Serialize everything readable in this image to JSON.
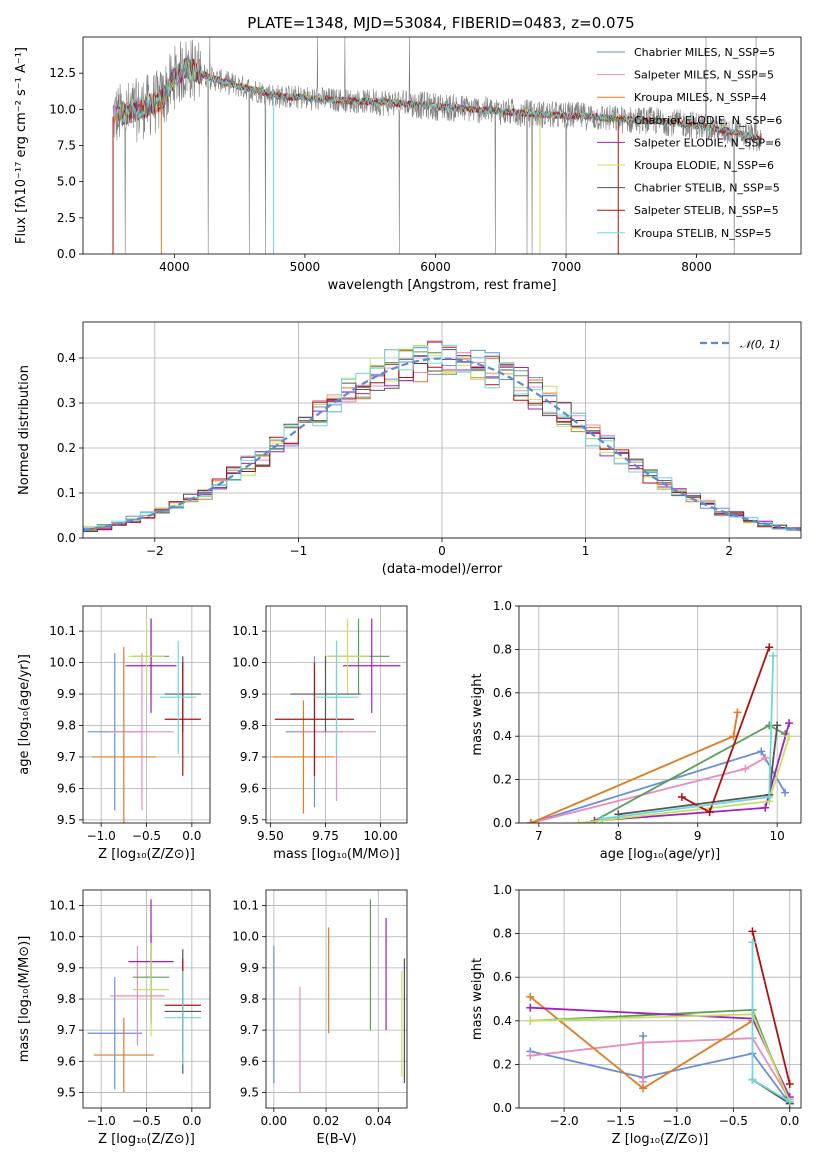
{
  "figure_title": "PLATE=1348, MJD=53084, FIBERID=0483, z=0.075",
  "colors": {
    "chabrier_miles": "#6a8fd6",
    "salpeter_miles": "#e98cc0",
    "kroupa_miles": "#e07b22",
    "chabrier_elodie": "#5a9e5a",
    "salpeter_elodie": "#a020c0",
    "kroupa_elodie": "#c8e060",
    "chabrier_stelib": "#555555",
    "salpeter_stelib": "#b01010",
    "kroupa_stelib": "#70d8d8",
    "gaussian": "#5b8bd8"
  },
  "chart_data": [
    {
      "id": "spectrum",
      "type": "line",
      "xlabel": "wavelength [Angstrom, rest frame]",
      "ylabel": "Flux [fλ10⁻¹⁷ erg cm⁻² s⁻¹ A⁻¹]",
      "xlim": [
        3300,
        8800
      ],
      "ylim": [
        0,
        15
      ],
      "xticks": [
        "4000",
        "5000",
        "6000",
        "7000",
        "8000"
      ],
      "yticks": [
        "0.0",
        "2.5",
        "5.0",
        "7.5",
        "10.0",
        "12.5"
      ],
      "legend_position": "top-right",
      "legend": [
        "Chabrier MILES, N_SSP=5",
        "Salpeter MILES, N_SSP=5",
        "Kroupa MILES, N_SSP=4",
        "Chabrier ELODIE, N_SSP=6",
        "Salpeter ELODIE, N_SSP=6",
        "Kroupa ELODIE, N_SSP=6",
        "Chabrier STELIB, N_SSP=5",
        "Salpeter STELIB, N_SSP=5",
        "Kroupa STELIB, N_SSP=5"
      ],
      "continuum": {
        "x": [
          3530,
          3700,
          3900,
          4000,
          4100,
          4300,
          4500,
          4800,
          5000,
          5300,
          5600,
          6000,
          6300,
          6600,
          6900,
          7200,
          7400,
          7700,
          8000,
          8300,
          8500
        ],
        "y": [
          9.5,
          9.9,
          10.6,
          12.2,
          12.9,
          12.1,
          11.6,
          10.9,
          10.8,
          10.6,
          10.5,
          10.2,
          10.0,
          9.8,
          9.6,
          9.5,
          9.3,
          9.2,
          8.9,
          8.4,
          7.9
        ]
      }
    },
    {
      "id": "residuals",
      "type": "bar",
      "xlabel": "(data-model)/error",
      "ylabel": "Normed distribution",
      "xlim": [
        -2.5,
        2.5
      ],
      "ylim": [
        0,
        0.48
      ],
      "xticks": [
        "−2",
        "−1",
        "0",
        "1",
        "2"
      ],
      "yticks": [
        "0.0",
        "0.1",
        "0.2",
        "0.3",
        "0.4"
      ],
      "legend_position": "top-right",
      "gaussian_label": "𝒩(0, 1)",
      "bin_width": 0.1,
      "grid": true
    },
    {
      "id": "age_vs_Z",
      "type": "scatter",
      "xlabel": "Z [log₁₀(Z/Z⊙)]",
      "ylabel": "age  [log₁₀(age/yr)]",
      "xlim": [
        -1.2,
        0.2
      ],
      "ylim": [
        9.49,
        10.18
      ],
      "xticks": [
        "−1.0",
        "−0.5",
        "0.0"
      ],
      "yticks": [
        "9.5",
        "9.6",
        "9.7",
        "9.8",
        "9.9",
        "10.0",
        "10.1"
      ],
      "points": [
        {
          "x": -0.85,
          "y": 9.78,
          "xerr": 0.3,
          "yerr": 0.25
        },
        {
          "x": -0.55,
          "y": 9.78,
          "xerr": 0.35,
          "yerr": 0.25
        },
        {
          "x": -0.75,
          "y": 9.7,
          "xerr": 0.35,
          "yerr": 0.35
        },
        {
          "x": -0.45,
          "y": 10.02,
          "xerr": 0.2,
          "yerr": 0.12
        },
        {
          "x": -0.45,
          "y": 9.99,
          "xerr": 0.28,
          "yerr": 0.15
        },
        {
          "x": -0.5,
          "y": 10.02,
          "xerr": 0.2,
          "yerr": 0.12
        },
        {
          "x": -0.1,
          "y": 9.9,
          "xerr": 0.2,
          "yerr": 0.12
        },
        {
          "x": -0.1,
          "y": 9.82,
          "xerr": 0.2,
          "yerr": 0.18
        },
        {
          "x": -0.15,
          "y": 9.89,
          "xerr": 0.2,
          "yerr": 0.18
        }
      ]
    },
    {
      "id": "age_vs_mass",
      "type": "scatter",
      "xlabel": "mass [log₁₀(M/M⊙)]",
      "ylabel": "",
      "xlim": [
        9.48,
        10.12
      ],
      "ylim": [
        9.49,
        10.18
      ],
      "xticks": [
        "9.50",
        "9.75",
        "10.00"
      ],
      "yticks": [
        "9.5",
        "9.6",
        "9.7",
        "9.8",
        "9.9",
        "10.0",
        "10.1"
      ],
      "points": [
        {
          "x": 9.7,
          "y": 9.78,
          "xerr": 0.13,
          "yerr": 0.24
        },
        {
          "x": 9.8,
          "y": 9.78,
          "xerr": 0.18,
          "yerr": 0.22
        },
        {
          "x": 9.65,
          "y": 9.7,
          "xerr": 0.14,
          "yerr": 0.18
        },
        {
          "x": 9.9,
          "y": 10.02,
          "xerr": 0.14,
          "yerr": 0.12
        },
        {
          "x": 9.96,
          "y": 9.99,
          "xerr": 0.13,
          "yerr": 0.15
        },
        {
          "x": 9.85,
          "y": 10.02,
          "xerr": 0.1,
          "yerr": 0.12
        },
        {
          "x": 9.75,
          "y": 9.9,
          "xerr": 0.16,
          "yerr": 0.12
        },
        {
          "x": 9.7,
          "y": 9.82,
          "xerr": 0.18,
          "yerr": 0.18
        },
        {
          "x": 9.8,
          "y": 9.89,
          "xerr": 0.1,
          "yerr": 0.18
        }
      ]
    },
    {
      "id": "weight_vs_age",
      "type": "line",
      "xlabel": "age  [log₁₀(age/yr)]",
      "ylabel": "mass weight",
      "xlim": [
        6.75,
        10.3
      ],
      "ylim": [
        0,
        1.0
      ],
      "xticks": [
        "7",
        "8",
        "9",
        "10"
      ],
      "yticks": [
        "0.0",
        "0.2",
        "0.4",
        "0.6",
        "0.8",
        "1.0"
      ],
      "series": [
        {
          "color_key": "chabrier_miles",
          "x": [
            6.9,
            9.8,
            10.1
          ],
          "y": [
            0.0,
            0.33,
            0.14
          ]
        },
        {
          "color_key": "salpeter_miles",
          "x": [
            6.9,
            9.6,
            9.85
          ],
          "y": [
            0.0,
            0.25,
            0.3
          ]
        },
        {
          "color_key": "kroupa_miles",
          "x": [
            6.9,
            9.45,
            9.5
          ],
          "y": [
            0.0,
            0.4,
            0.51
          ]
        },
        {
          "color_key": "chabrier_elodie",
          "x": [
            7.7,
            9.9,
            10.1
          ],
          "y": [
            0.01,
            0.45,
            0.41
          ]
        },
        {
          "color_key": "salpeter_elodie",
          "x": [
            7.7,
            9.85,
            10.15
          ],
          "y": [
            0.01,
            0.07,
            0.46
          ]
        },
        {
          "color_key": "kroupa_elodie",
          "x": [
            7.5,
            9.9,
            10.15
          ],
          "y": [
            0.0,
            0.1,
            0.4
          ]
        },
        {
          "color_key": "chabrier_stelib",
          "x": [
            8.0,
            9.9,
            10.0
          ],
          "y": [
            0.04,
            0.13,
            0.45
          ]
        },
        {
          "color_key": "salpeter_stelib",
          "x": [
            8.8,
            9.15,
            9.9
          ],
          "y": [
            0.12,
            0.05,
            0.81
          ]
        },
        {
          "color_key": "kroupa_stelib",
          "x": [
            7.8,
            9.9,
            9.95
          ],
          "y": [
            0.02,
            0.12,
            0.77
          ]
        }
      ],
      "grid": true
    },
    {
      "id": "mass_vs_Z",
      "type": "scatter",
      "xlabel": "Z [log₁₀(Z/Z⊙)]",
      "ylabel": "mass [log₁₀(M/M⊙)]",
      "xlim": [
        -1.2,
        0.2
      ],
      "ylim": [
        9.45,
        10.15
      ],
      "xticks": [
        "−1.0",
        "−0.5",
        "0.0"
      ],
      "yticks": [
        "9.5",
        "9.6",
        "9.7",
        "9.8",
        "9.9",
        "10.0",
        "10.1"
      ],
      "points": [
        {
          "x": -0.85,
          "y": 9.69,
          "xerr": 0.3,
          "yerr": 0.18
        },
        {
          "x": -0.6,
          "y": 9.81,
          "xerr": 0.3,
          "yerr": 0.16
        },
        {
          "x": -0.75,
          "y": 9.62,
          "xerr": 0.33,
          "yerr": 0.12
        },
        {
          "x": -0.45,
          "y": 9.87,
          "xerr": 0.2,
          "yerr": 0.14
        },
        {
          "x": -0.45,
          "y": 9.92,
          "xerr": 0.25,
          "yerr": 0.2
        },
        {
          "x": -0.45,
          "y": 9.83,
          "xerr": 0.2,
          "yerr": 0.15
        },
        {
          "x": -0.1,
          "y": 9.76,
          "xerr": 0.2,
          "yerr": 0.2
        },
        {
          "x": -0.1,
          "y": 9.78,
          "xerr": 0.2,
          "yerr": 0.15
        },
        {
          "x": -0.1,
          "y": 9.74,
          "xerr": 0.2,
          "yerr": 0.15
        }
      ]
    },
    {
      "id": "mass_vs_ebv",
      "type": "scatter",
      "xlabel": "E(B-V)",
      "ylabel": "",
      "xlim": [
        -0.003,
        0.051
      ],
      "ylim": [
        9.45,
        10.15
      ],
      "xticks": [
        "0.00",
        "0.02",
        "0.04"
      ],
      "yticks": [
        "9.5",
        "9.6",
        "9.7",
        "9.8",
        "9.9",
        "10.0",
        "10.1"
      ],
      "points": [
        {
          "x": 0.0,
          "y": 9.75,
          "yerr": 0.22
        },
        {
          "x": 0.01,
          "y": 9.67,
          "yerr": 0.17
        },
        {
          "x": 0.021,
          "y": 9.86,
          "yerr": 0.17
        },
        {
          "x": 0.037,
          "y": 9.91,
          "yerr": 0.21
        },
        {
          "x": 0.043,
          "y": 9.88,
          "yerr": 0.18
        },
        {
          "x": 0.049,
          "y": 9.72,
          "yerr": 0.17
        },
        {
          "x": 0.05,
          "y": 9.73,
          "yerr": 0.2
        }
      ]
    },
    {
      "id": "weight_vs_Z",
      "type": "line",
      "xlabel": "Z [log₁₀(Z/Z⊙)]",
      "ylabel": "mass weight",
      "xlim": [
        -2.4,
        0.1
      ],
      "ylim": [
        0,
        1.0
      ],
      "xticks": [
        "−2.0",
        "−1.5",
        "−1.0",
        "−0.5",
        "0.0"
      ],
      "yticks": [
        "0.0",
        "0.2",
        "0.4",
        "0.6",
        "0.8",
        "1.0"
      ],
      "series": [
        {
          "color_key": "chabrier_miles",
          "x": [
            -2.3,
            -1.3,
            -0.33,
            0.0
          ],
          "y": [
            0.26,
            0.14,
            0.25,
            0.02
          ]
        },
        {
          "color_key": "chabrier_miles",
          "x": [
            -1.3,
            -1.3
          ],
          "y": [
            0.14,
            0.33
          ]
        },
        {
          "color_key": "salpeter_miles",
          "x": [
            -2.3,
            -1.3,
            -0.33,
            0.0
          ],
          "y": [
            0.24,
            0.3,
            0.32,
            0.04
          ]
        },
        {
          "color_key": "salpeter_miles",
          "x": [
            -1.3,
            -1.3
          ],
          "y": [
            0.3,
            0.12
          ]
        },
        {
          "color_key": "kroupa_miles",
          "x": [
            -2.3,
            -1.3,
            -0.33
          ],
          "y": [
            0.51,
            0.09,
            0.4
          ]
        },
        {
          "color_key": "chabrier_elodie",
          "x": [
            -2.3,
            -0.33,
            0.0
          ],
          "y": [
            0.4,
            0.45,
            0.02
          ]
        },
        {
          "color_key": "salpeter_elodie",
          "x": [
            -2.3,
            -0.33,
            0.0
          ],
          "y": [
            0.46,
            0.41,
            0.05
          ]
        },
        {
          "color_key": "kroupa_elodie",
          "x": [
            -2.3,
            -0.33,
            0.0
          ],
          "y": [
            0.4,
            0.43,
            0.03
          ]
        },
        {
          "color_key": "chabrier_stelib",
          "x": [
            -0.33,
            0.0
          ],
          "y": [
            0.13,
            0.02
          ]
        },
        {
          "color_key": "salpeter_stelib",
          "x": [
            -0.33,
            0.0
          ],
          "y": [
            0.81,
            0.11
          ]
        },
        {
          "color_key": "kroupa_stelib",
          "x": [
            -0.33,
            -0.33,
            0.0
          ],
          "y": [
            0.76,
            0.13,
            0.03
          ]
        }
      ],
      "grid": true
    }
  ]
}
